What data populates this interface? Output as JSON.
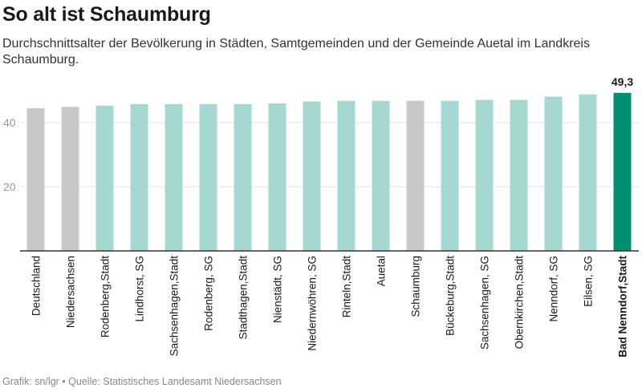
{
  "header": {
    "title": "So alt ist Schaumburg",
    "subtitle": "Durchschnittsalter der Bevölkerung in Städten, Samtgemeinden und der Gemeinde Auetal im Landkreis Schaumburg."
  },
  "footer": {
    "source": "Grafik: sn/lgr • Quelle: Statistisches Landesamt Niedersachsen"
  },
  "colors": {
    "reference": "#c8c8c8",
    "municipality": "#a5d8d0",
    "highlight": "#009070",
    "grid": "#e6e6e6",
    "axis": "#333333",
    "tick_text": "#999999"
  },
  "chart_data": {
    "type": "bar",
    "title": "So alt ist Schaumburg",
    "xlabel": "",
    "ylabel": "",
    "ylim": [
      0,
      50
    ],
    "yticks": [
      20,
      40
    ],
    "grid": true,
    "categories": [
      "Deutschland",
      "Niedersachsen",
      "Rodenberg,Stadt",
      "Lindhorst, SG",
      "Sachsenhagen,Stadt",
      "Rodenberg, SG",
      "Stadthagen,Stadt",
      "Nienstädt, SG",
      "Niedernwöhren, SG",
      "Rinteln,Stadt",
      "Auetal",
      "Schaumburg",
      "Bückeburg,Stadt",
      "Sachsenhagen, SG",
      "Obernkirchen,Stadt",
      "Nenndorf, SG",
      "Eilsen, SG",
      "Bad Nenndorf,Stadt"
    ],
    "values": [
      44.5,
      44.9,
      45.3,
      45.8,
      45.8,
      45.8,
      45.8,
      46.0,
      46.6,
      46.8,
      46.8,
      46.8,
      46.8,
      47.1,
      47.1,
      48.1,
      48.8,
      49.3
    ],
    "groups": [
      "reference",
      "reference",
      "municipality",
      "municipality",
      "municipality",
      "municipality",
      "municipality",
      "municipality",
      "municipality",
      "municipality",
      "municipality",
      "reference",
      "municipality",
      "municipality",
      "municipality",
      "municipality",
      "municipality",
      "highlight"
    ],
    "data_labels": [
      {
        "index": 17,
        "text": "49,3"
      }
    ]
  }
}
